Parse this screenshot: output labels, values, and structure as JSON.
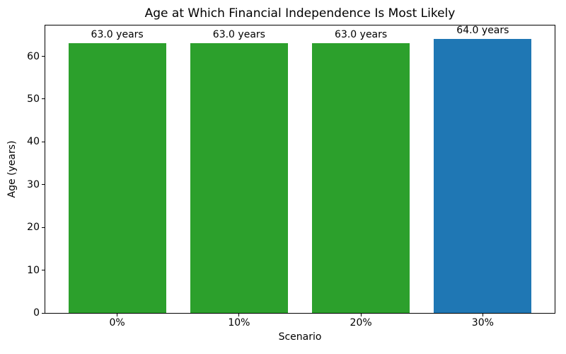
{
  "chart_data": {
    "type": "bar",
    "title": "Age at Which Financial Independence Is Most Likely",
    "xlabel": "Scenario",
    "ylabel": "Age (years)",
    "categories": [
      "0%",
      "10%",
      "20%",
      "30%"
    ],
    "values": [
      63.0,
      63.0,
      63.0,
      64.0
    ],
    "bar_labels": [
      "63.0 years",
      "63.0 years",
      "63.0 years",
      "64.0 years"
    ],
    "bar_colors": [
      "#2ca02c",
      "#2ca02c",
      "#2ca02c",
      "#1f77b4"
    ],
    "ylim": [
      0,
      67.2
    ],
    "yticks": [
      0,
      10,
      20,
      30,
      40,
      50,
      60
    ],
    "grid": false,
    "legend": false,
    "background_color": "#ffffff",
    "text_color": "#000000"
  }
}
